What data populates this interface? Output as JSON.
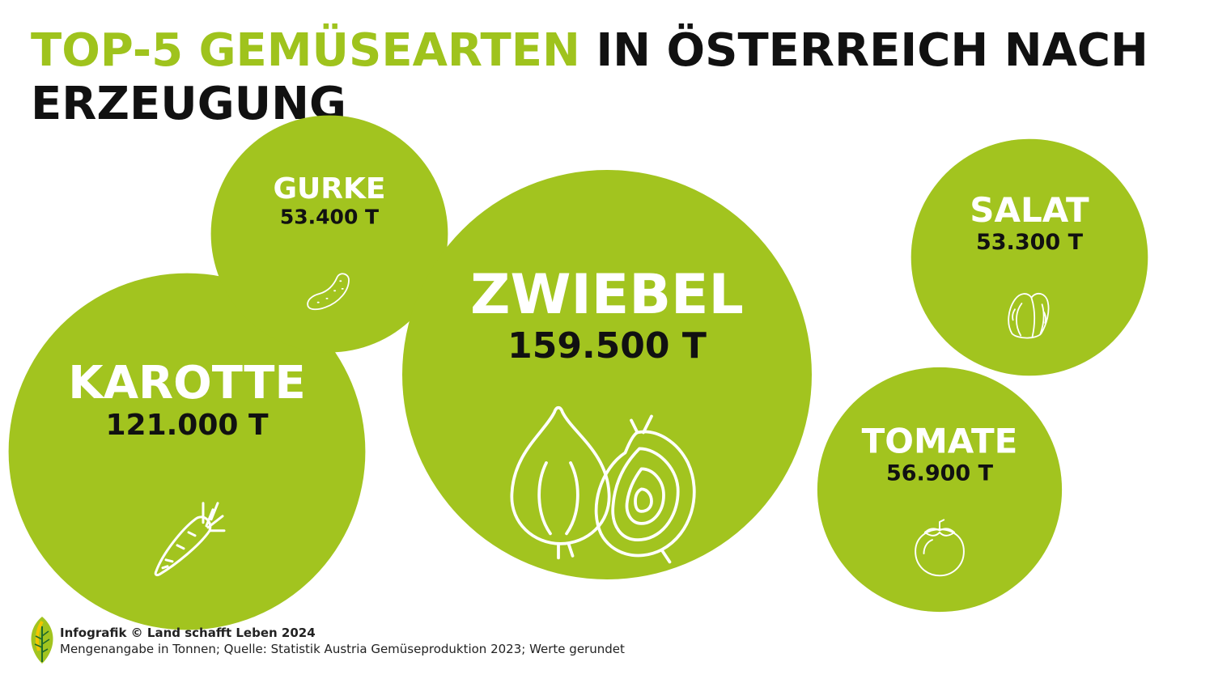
{
  "title": {
    "highlight": "TOP-5 GEMÜSEARTEN",
    "rest": " IN ÖSTERREICH NACH ERZEUGUNG"
  },
  "chart_data": {
    "type": "bubble",
    "categories": [
      "KAROTTE",
      "GURKE",
      "ZWIEBEL",
      "SALAT",
      "TOMATE"
    ],
    "values": [
      121000,
      53400,
      159500,
      53300,
      56900
    ],
    "value_labels": [
      "121.000 T",
      "53.400 T",
      "159.500 T",
      "53.300 T",
      "56.900 T"
    ],
    "icons": [
      "carrot-icon",
      "cucumber-icon",
      "onion-icon",
      "lettuce-icon",
      "tomato-icon"
    ],
    "unit": "Tonnen",
    "bubble_color": "#a2c41f",
    "highlight_color": "#9fc31d"
  },
  "footer": {
    "credit": "Infografik © Land schafft Leben 2024",
    "note": "Mengenangabe in Tonnen; Quelle: Statistik Austria Gemüseproduktion 2023; Werte gerundet"
  }
}
